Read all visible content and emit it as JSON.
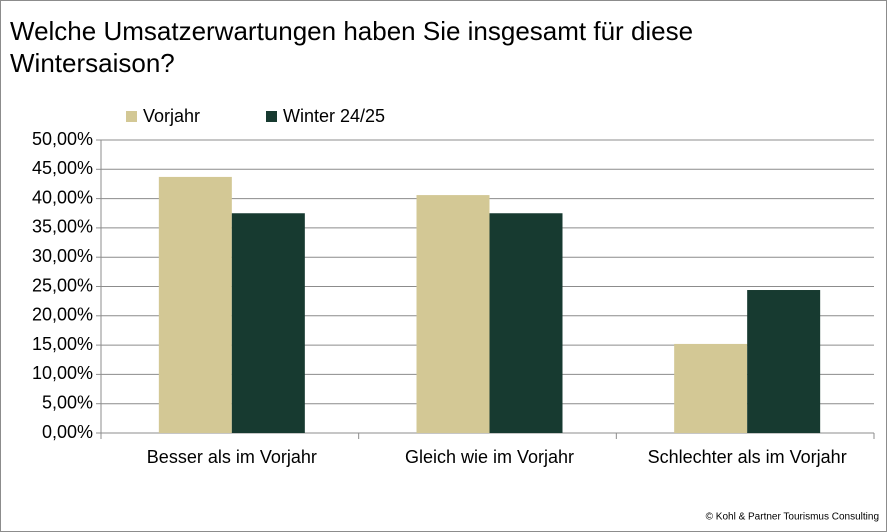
{
  "chart_data": {
    "type": "bar",
    "title": "Welche Umsatzerwartungen haben Sie insgesamt für diese Wintersaison?",
    "categories": [
      "Besser als im Vorjahr",
      "Gleich wie im Vorjahr",
      "Schlechter als im Vorjahr"
    ],
    "series": [
      {
        "name": "Vorjahr",
        "color": "#d3c895",
        "values": [
          43.7,
          40.6,
          15.2
        ]
      },
      {
        "name": "Winter 24/25",
        "color": "#173a30",
        "values": [
          37.5,
          37.5,
          24.4
        ]
      }
    ],
    "ylim": [
      0,
      50
    ],
    "yticks": [
      {
        "value": 0,
        "label": "0,00%"
      },
      {
        "value": 5,
        "label": "5,00%"
      },
      {
        "value": 10,
        "label": "10,00%"
      },
      {
        "value": 15,
        "label": "15,00%"
      },
      {
        "value": 20,
        "label": "20,00%"
      },
      {
        "value": 25,
        "label": "25,00%"
      },
      {
        "value": 30,
        "label": "30,00%"
      },
      {
        "value": 35,
        "label": "35,00%"
      },
      {
        "value": 40,
        "label": "40,00%"
      },
      {
        "value": 45,
        "label": "45,00%"
      },
      {
        "value": 50,
        "label": "50,00%"
      }
    ],
    "grid": true,
    "legend": "top-left",
    "footnote": "© Kohl & Partner Tourismus Consulting"
  }
}
